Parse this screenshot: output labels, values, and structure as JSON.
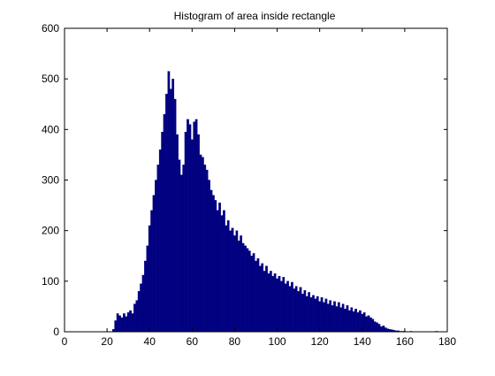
{
  "chart_data": {
    "type": "bar",
    "title": "Histogram of area inside rectangle",
    "xlabel": "",
    "ylabel": "",
    "xlim": [
      0,
      180
    ],
    "ylim": [
      0,
      600
    ],
    "grid": false,
    "xticks": [
      "0",
      "20",
      "40",
      "60",
      "80",
      "100",
      "120",
      "140",
      "160",
      "180"
    ],
    "yticks": [
      "0",
      "100",
      "200",
      "300",
      "400",
      "500",
      "600"
    ],
    "bar_color": "#000080",
    "bin_width": 1,
    "x": [
      23,
      24,
      25,
      26,
      27,
      28,
      29,
      30,
      31,
      32,
      33,
      34,
      35,
      36,
      37,
      38,
      39,
      40,
      41,
      42,
      43,
      44,
      45,
      46,
      47,
      48,
      49,
      50,
      51,
      52,
      53,
      54,
      55,
      56,
      57,
      58,
      59,
      60,
      61,
      62,
      63,
      64,
      65,
      66,
      67,
      68,
      69,
      70,
      71,
      72,
      73,
      74,
      75,
      76,
      77,
      78,
      79,
      80,
      81,
      82,
      83,
      84,
      85,
      86,
      87,
      88,
      89,
      90,
      91,
      92,
      93,
      94,
      95,
      96,
      97,
      98,
      99,
      100,
      101,
      102,
      103,
      104,
      105,
      106,
      107,
      108,
      109,
      110,
      111,
      112,
      113,
      114,
      115,
      116,
      117,
      118,
      119,
      120,
      121,
      122,
      123,
      124,
      125,
      126,
      127,
      128,
      129,
      130,
      131,
      132,
      133,
      134,
      135,
      136,
      137,
      138,
      139,
      140,
      141,
      142,
      143,
      144,
      145,
      146,
      147,
      148,
      149,
      150,
      151,
      152,
      153,
      154,
      155,
      156,
      157,
      158,
      159,
      160,
      161,
      162,
      163,
      164,
      165,
      166,
      167,
      168,
      169,
      170,
      171,
      172,
      173,
      174,
      175
    ],
    "values": [
      5,
      22,
      36,
      32,
      28,
      36,
      30,
      38,
      42,
      36,
      55,
      62,
      80,
      95,
      112,
      140,
      170,
      210,
      240,
      270,
      300,
      330,
      360,
      395,
      430,
      470,
      515,
      480,
      500,
      460,
      390,
      340,
      310,
      330,
      395,
      420,
      410,
      380,
      415,
      420,
      390,
      350,
      345,
      330,
      320,
      300,
      280,
      270,
      260,
      240,
      255,
      230,
      240,
      210,
      220,
      200,
      205,
      190,
      200,
      180,
      190,
      175,
      170,
      165,
      160,
      150,
      155,
      140,
      145,
      130,
      135,
      120,
      130,
      115,
      120,
      110,
      115,
      105,
      110,
      100,
      108,
      95,
      100,
      90,
      98,
      85,
      90,
      80,
      88,
      75,
      82,
      70,
      78,
      68,
      72,
      65,
      70,
      60,
      68,
      58,
      65,
      55,
      62,
      52,
      60,
      50,
      58,
      48,
      55,
      45,
      52,
      42,
      48,
      40,
      45,
      38,
      42,
      35,
      38,
      30,
      32,
      28,
      25,
      20,
      18,
      15,
      10,
      12,
      8,
      6,
      5,
      4,
      3,
      2,
      2,
      1,
      1,
      1,
      0,
      0,
      1,
      0,
      0,
      0,
      0,
      0,
      0,
      0,
      0,
      0,
      0,
      0,
      1
    ]
  }
}
